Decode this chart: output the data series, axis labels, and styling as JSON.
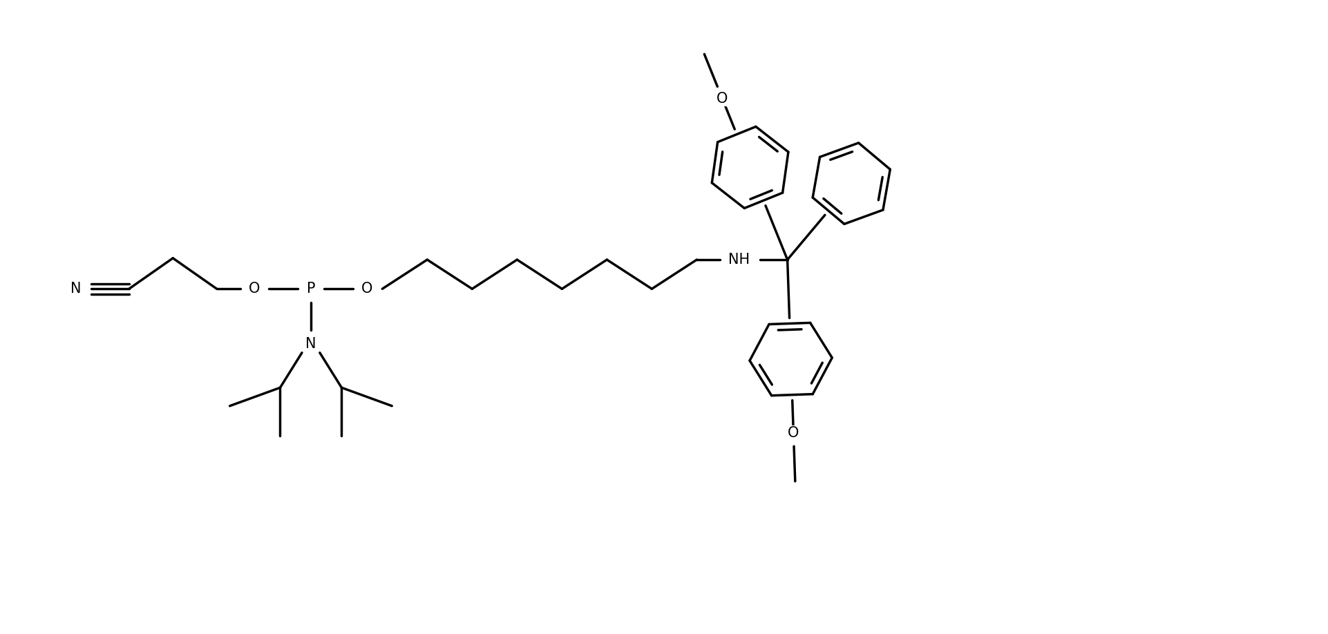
{
  "bg": "#ffffff",
  "lc": "#000000",
  "lw": 2.5,
  "fs": 15,
  "figsize": [
    19.22,
    9.18
  ],
  "dpi": 100,
  "xlim": [
    0,
    19.22
  ],
  "ylim": [
    0,
    9.18
  ]
}
